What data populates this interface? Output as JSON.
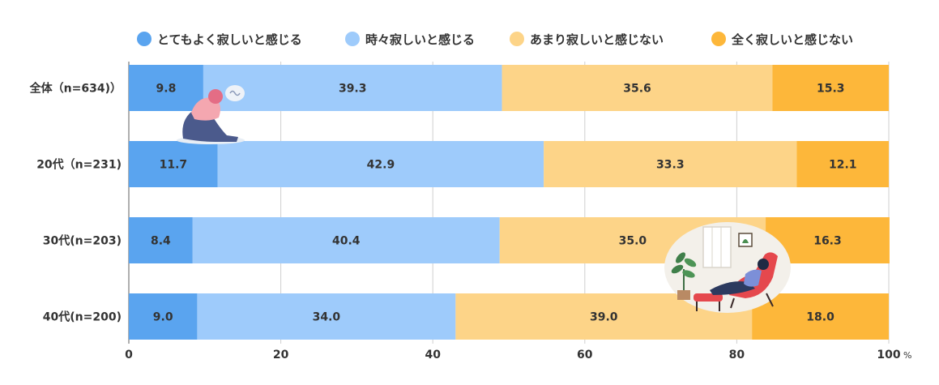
{
  "chart_data": {
    "type": "bar",
    "orientation": "horizontal",
    "stacked": true,
    "categories": [
      "全体（n=634)）",
      "20代（n=231)",
      "30代(n=203)",
      "40代(n=200)"
    ],
    "series": [
      {
        "name": "とてもよく寂しいと感じる",
        "color": "#5aa4ef",
        "values": [
          9.8,
          11.7,
          8.4,
          9.0
        ],
        "labels": [
          "9.8",
          "11.7",
          "8.4",
          "9.0"
        ]
      },
      {
        "name": "時々寂しいと感じる",
        "color": "#9ecbfb",
        "values": [
          39.3,
          42.9,
          40.4,
          34.0
        ],
        "labels": [
          "39.3",
          "42.9",
          "40.4",
          "34.0"
        ]
      },
      {
        "name": "あまり寂しいと感じない",
        "color": "#fdd488",
        "values": [
          35.6,
          33.3,
          35.0,
          39.0
        ],
        "labels": [
          "35.6",
          "33.3",
          "35.0",
          "39.0"
        ]
      },
      {
        "name": "全く寂しいと感じない",
        "color": "#fdb73a",
        "values": [
          15.3,
          12.1,
          16.3,
          18.0
        ],
        "labels": [
          "15.3",
          "12.1",
          "16.3",
          "18.0"
        ]
      }
    ],
    "xlim": [
      0,
      100
    ],
    "xticks": [
      "0",
      "20",
      "40",
      "60",
      "80",
      "100"
    ],
    "unit": "%",
    "grid": true,
    "legend_position": "top"
  }
}
